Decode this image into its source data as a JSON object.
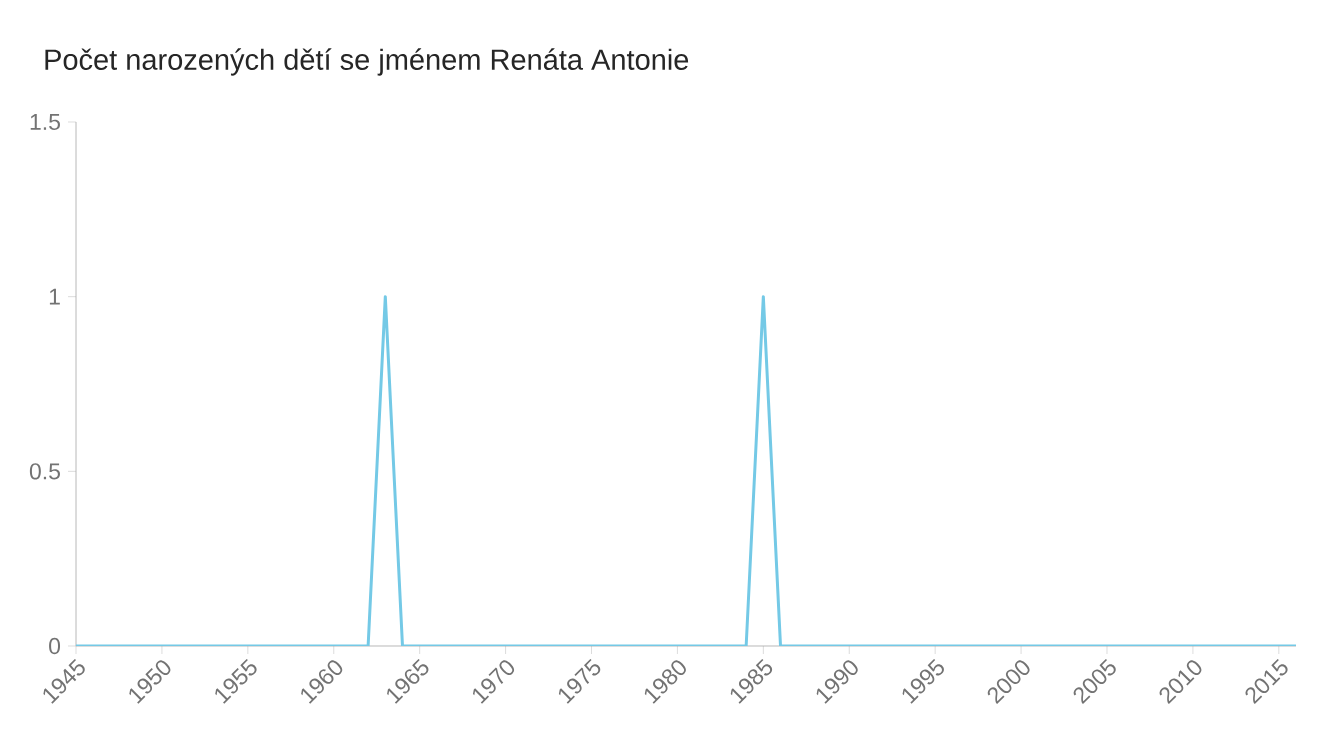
{
  "chart_data": {
    "type": "line",
    "title": "Počet narozených dětí se jménem Renáta Antonie",
    "x": [
      1945,
      1962,
      1963,
      1964,
      1984,
      1985,
      1986,
      2016
    ],
    "values": [
      0,
      0,
      1,
      0,
      0,
      1,
      0,
      0
    ],
    "color": "#74c9e6",
    "xlim": [
      1945,
      2016
    ],
    "xticks": [
      1945,
      1950,
      1955,
      1960,
      1965,
      1970,
      1975,
      1980,
      1985,
      1990,
      1995,
      2000,
      2005,
      2010,
      2015
    ],
    "ylim": [
      0,
      1.5
    ],
    "yticks": [
      0,
      0.5,
      1,
      1.5
    ],
    "grid": false,
    "marker": "none",
    "line_style": "solid"
  }
}
